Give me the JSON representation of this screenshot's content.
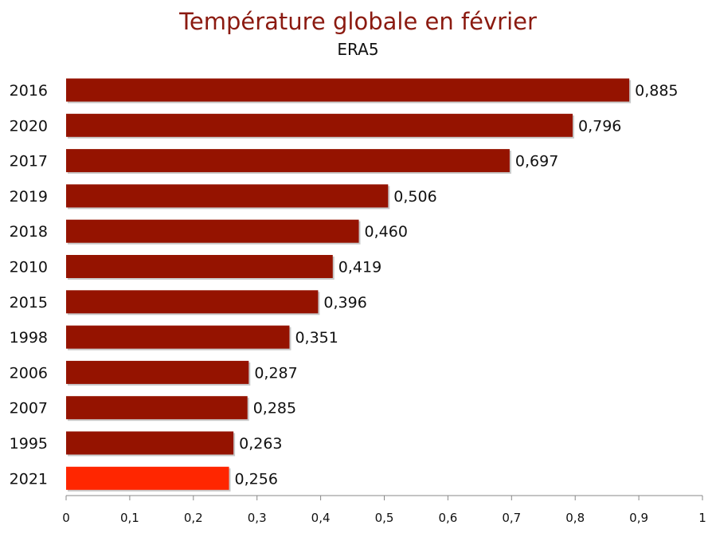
{
  "chart_data": {
    "type": "bar",
    "orientation": "horizontal",
    "title": "Température globale en février",
    "subtitle": "ERA5",
    "xlabel": "",
    "ylabel": "",
    "categories": [
      "2016",
      "2020",
      "2017",
      "2019",
      "2018",
      "2010",
      "2015",
      "1998",
      "2006",
      "2007",
      "1995",
      "2021"
    ],
    "values": [
      0.885,
      0.796,
      0.697,
      0.506,
      0.46,
      0.419,
      0.396,
      0.351,
      0.287,
      0.285,
      0.263,
      0.256
    ],
    "value_labels": [
      "0,885",
      "0,796",
      "0,697",
      "0,506",
      "0,460",
      "0,419",
      "0,396",
      "0,351",
      "0,287",
      "0,285",
      "0,263",
      "0,256"
    ],
    "xlim": [
      0,
      1
    ],
    "xticks": [
      0,
      0.1,
      0.2,
      0.3,
      0.4,
      0.5,
      0.6,
      0.7,
      0.8,
      0.9,
      1
    ],
    "xtick_labels": [
      "0",
      "0,1",
      "0,2",
      "0,3",
      "0,4",
      "0,5",
      "0,6",
      "0,7",
      "0,8",
      "0,9",
      "1"
    ],
    "grid": false,
    "legend": "none",
    "colors": {
      "bar": "#951300",
      "highlight": "#ff2600",
      "title": "#8b1a10",
      "axis": "#888888"
    },
    "highlight_category": "2021"
  }
}
